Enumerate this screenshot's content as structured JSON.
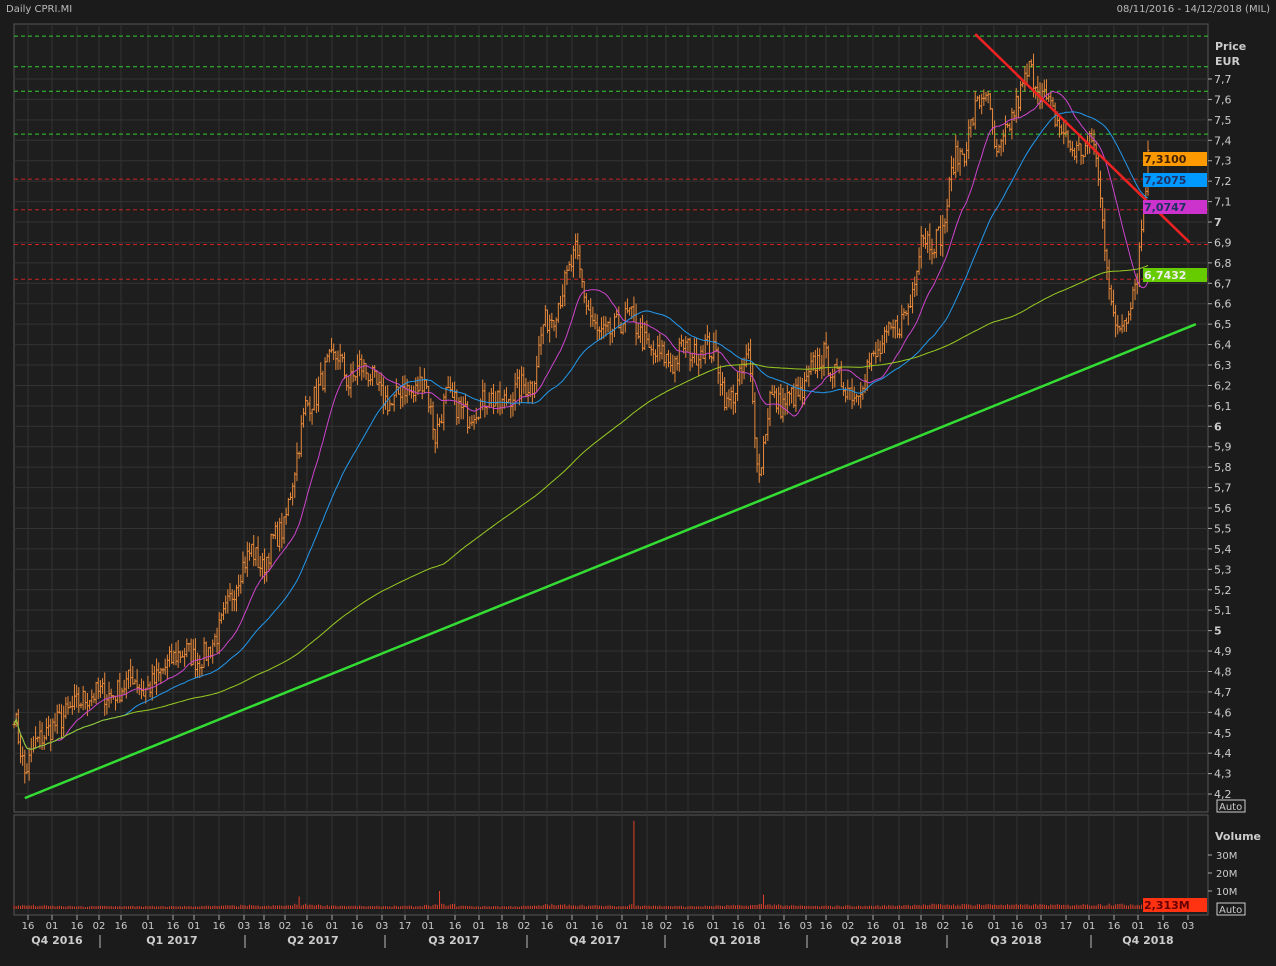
{
  "header": {
    "title": "Daily CPRI.MI",
    "range": "08/11/2016 - 14/12/2018 (MIL)"
  },
  "chart_data": {
    "type": "ohlc",
    "price_axis": {
      "label_1": "Price",
      "label_2": "EUR",
      "ticks": [
        "7,7",
        "7,6",
        "7,5",
        "7,4",
        "7,3",
        "7,2",
        "7,1",
        "7",
        "6,9",
        "6,8",
        "6,7",
        "6,6",
        "6,5",
        "6,4",
        "6,3",
        "6,2",
        "6,1",
        "6",
        "5,9",
        "5,8",
        "5,7",
        "5,6",
        "5,5",
        "5,4",
        "5,3",
        "5,2",
        "5,1",
        "5",
        "4,9",
        "4,8",
        "4,7",
        "4,6",
        "4,5",
        "4,4",
        "4,3",
        "4,2"
      ],
      "ylim": [
        4.15,
        7.95
      ],
      "scale_button": "Auto"
    },
    "volume_axis": {
      "label": "Volume",
      "ticks": [
        "30M",
        "20M",
        "10M"
      ],
      "scale_button": "Auto",
      "last_label": "2,313M"
    },
    "x_ticks": [
      "16",
      "01",
      "16",
      "02",
      "16",
      "01",
      "16",
      "01",
      "16",
      "03",
      "18",
      "02",
      "16",
      "01",
      "16",
      "03",
      "17",
      "01",
      "16",
      "01",
      "18",
      "02",
      "16",
      "01",
      "16",
      "01",
      "18",
      "02",
      "16",
      "01",
      "16",
      "01",
      "16",
      "03",
      "16",
      "02",
      "16",
      "01",
      "18",
      "02",
      "16",
      "01",
      "16",
      "03",
      "17",
      "01",
      "16",
      "01",
      "16",
      "03"
    ],
    "quarters": [
      "Q4 2016",
      "Q1 2017",
      "Q2 2017",
      "Q3 2017",
      "Q4 2017",
      "Q1 2018",
      "Q2 2018",
      "Q3 2018",
      "Q4 2018"
    ],
    "x": [
      "2016-11-08",
      "2016-11-15",
      "2016-11-22",
      "2016-11-29",
      "2016-12-06",
      "2016-12-13",
      "2016-12-20",
      "2016-12-27",
      "2017-01-03",
      "2017-01-10",
      "2017-01-17",
      "2017-01-24",
      "2017-01-31",
      "2017-02-07",
      "2017-02-14",
      "2017-02-21",
      "2017-02-28",
      "2017-03-07",
      "2017-03-14",
      "2017-03-21",
      "2017-03-28",
      "2017-04-04",
      "2017-04-11",
      "2017-04-18",
      "2017-04-25",
      "2017-05-02",
      "2017-05-09",
      "2017-05-16",
      "2017-05-23",
      "2017-05-30",
      "2017-06-06",
      "2017-06-13",
      "2017-06-20",
      "2017-06-27",
      "2017-07-04",
      "2017-07-11",
      "2017-07-18",
      "2017-07-25",
      "2017-08-01",
      "2017-08-08",
      "2017-08-15",
      "2017-08-22",
      "2017-08-29",
      "2017-09-05",
      "2017-09-12",
      "2017-09-19",
      "2017-09-26",
      "2017-10-03",
      "2017-10-10",
      "2017-10-17",
      "2017-10-24",
      "2017-10-31",
      "2017-11-07",
      "2017-11-14",
      "2017-11-21",
      "2017-11-28",
      "2017-12-05",
      "2017-12-12",
      "2017-12-19",
      "2017-12-26",
      "2018-01-02",
      "2018-01-09",
      "2018-01-16",
      "2018-01-23",
      "2018-01-30",
      "2018-02-06",
      "2018-02-13",
      "2018-02-20",
      "2018-02-27",
      "2018-03-06",
      "2018-03-13",
      "2018-03-20",
      "2018-03-27",
      "2018-04-03",
      "2018-04-10",
      "2018-04-17",
      "2018-04-24",
      "2018-05-01",
      "2018-05-08",
      "2018-05-15",
      "2018-05-22",
      "2018-05-29",
      "2018-06-05",
      "2018-06-12",
      "2018-06-19",
      "2018-06-26",
      "2018-07-03",
      "2018-07-10",
      "2018-07-17",
      "2018-07-24",
      "2018-07-31",
      "2018-08-07",
      "2018-08-14",
      "2018-08-21",
      "2018-08-28",
      "2018-09-04",
      "2018-09-11",
      "2018-09-18",
      "2018-09-25",
      "2018-10-02",
      "2018-10-09",
      "2018-10-16",
      "2018-10-23",
      "2018-10-30",
      "2018-11-06",
      "2018-11-13"
    ],
    "close": [
      4.6,
      4.3,
      4.45,
      4.5,
      4.55,
      4.6,
      4.65,
      4.68,
      4.7,
      4.68,
      4.72,
      4.78,
      4.7,
      4.75,
      4.82,
      4.88,
      4.9,
      4.85,
      4.9,
      5.0,
      5.15,
      5.3,
      5.4,
      5.3,
      5.45,
      5.5,
      5.8,
      6.1,
      6.15,
      6.3,
      6.35,
      6.2,
      6.3,
      6.25,
      6.15,
      6.1,
      6.2,
      6.15,
      6.25,
      5.95,
      6.15,
      6.1,
      6.05,
      6.1,
      6.15,
      6.1,
      6.15,
      6.2,
      6.2,
      6.5,
      6.55,
      6.7,
      6.85,
      6.6,
      6.45,
      6.45,
      6.5,
      6.55,
      6.45,
      6.35,
      6.35,
      6.3,
      6.4,
      6.35,
      6.4,
      6.35,
      6.1,
      6.2,
      6.35,
      5.75,
      6.15,
      6.1,
      6.15,
      6.15,
      6.3,
      6.35,
      6.25,
      6.2,
      6.15,
      6.3,
      6.35,
      6.45,
      6.5,
      6.6,
      6.95,
      6.9,
      6.95,
      7.3,
      7.35,
      7.55,
      7.65,
      7.3,
      7.45,
      7.6,
      7.75,
      7.65,
      7.55,
      7.45,
      7.35,
      7.35,
      7.4,
      6.9,
      6.45,
      6.55,
      6.75,
      7.31
    ],
    "volume_m": [
      2,
      2,
      1.8,
      1.7,
      1.6,
      1.5,
      1.4,
      1.5,
      1.7,
      1.6,
      1.5,
      1.6,
      1.5,
      1.4,
      1.5,
      1.6,
      1.5,
      1.7,
      1.6,
      1.8,
      1.9,
      2,
      1.8,
      1.7,
      1.9,
      2,
      7,
      2.5,
      2.2,
      2,
      1.8,
      1.7,
      1.6,
      1.5,
      1.6,
      1.7,
      1.6,
      1.5,
      2,
      10,
      2.5,
      1.8,
      1.6,
      1.5,
      1.6,
      1.5,
      1.6,
      1.7,
      1.8,
      2.5,
      2.2,
      2.4,
      2.1,
      1.9,
      1.8,
      1.7,
      1.6,
      49,
      2,
      1.8,
      1.7,
      1.6,
      1.5,
      1.6,
      1.7,
      1.8,
      2,
      1.9,
      2.2,
      8,
      2.5,
      2,
      1.8,
      1.7,
      1.6,
      1.7,
      1.8,
      1.9,
      1.7,
      1.8,
      1.9,
      2,
      2.2,
      2.4,
      2.3,
      2.5,
      2.6,
      2.4,
      2.5,
      2.7,
      2.6,
      2.5,
      2.4,
      2.3,
      2.5,
      2.4,
      2.3,
      2.2,
      2.4,
      2.5,
      2.6,
      3,
      2.8,
      2.6,
      2.5,
      2.313
    ],
    "last_values": [
      {
        "label": "7,3100",
        "color": "#ff9900"
      },
      {
        "label": "7,2075",
        "color": "#0099ff"
      },
      {
        "label": "7,0747",
        "color": "#cc33cc"
      },
      {
        "label": "6,7432",
        "color": "#66cc00"
      }
    ],
    "support_levels": [
      7.91,
      7.76,
      7.64,
      7.43
    ],
    "resistance_levels": [
      7.21,
      7.06,
      6.89,
      6.72
    ],
    "trendline_up": {
      "from": [
        "2016-11-15",
        4.18
      ],
      "to": [
        "2018-12-14",
        6.5
      ],
      "color": "#33dd33"
    },
    "trendline_down": {
      "from": [
        "2018-07-24",
        7.92
      ],
      "to": [
        "2018-12-10",
        6.9
      ],
      "color": "#ee2222"
    },
    "colors": {
      "price": "#e8893a",
      "ma_short": "#cc44cc",
      "ma_mid": "#2299ee",
      "ma_long": "#99cc22",
      "background": "#1e1e1e",
      "grid": "#333333"
    }
  }
}
